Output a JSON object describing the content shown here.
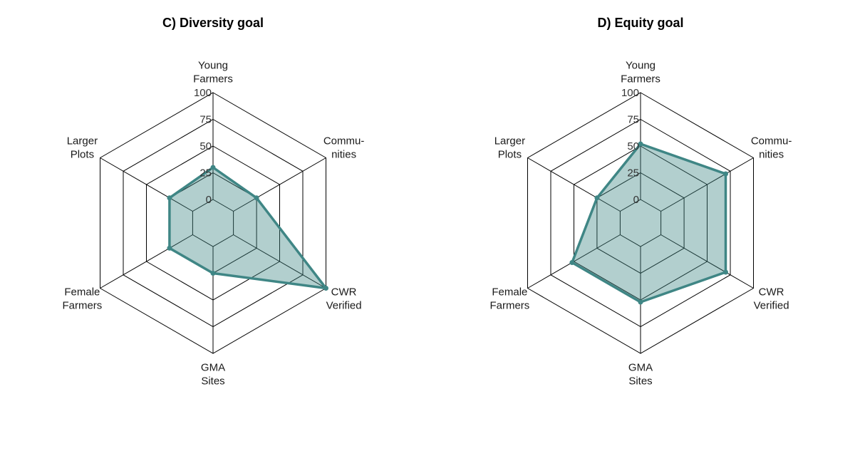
{
  "chart_data": [
    {
      "type": "radar",
      "title": "C) Diversity goal",
      "axes": [
        "Young\nFarmers",
        "Commu-\nnities",
        "CWR\nVerified",
        "GMA\nSites",
        "Female\nFarmers",
        "Larger\nPlots"
      ],
      "ticks": [
        0,
        25,
        50,
        75,
        100
      ],
      "range": [
        0,
        100
      ],
      "values": [
        30,
        25,
        100,
        25,
        25,
        25
      ],
      "colors": {
        "line": "#3f8685",
        "fill": "#3f8685"
      }
    },
    {
      "type": "radar",
      "title": "D) Equity goal",
      "axes": [
        "Young\nFarmers",
        "Commu-\nnities",
        "CWR\nVerified",
        "GMA\nSites",
        "Female\nFarmers",
        "Larger\nPlots"
      ],
      "ticks": [
        0,
        25,
        50,
        75,
        100
      ],
      "range": [
        0,
        100
      ],
      "values": [
        52,
        70,
        70,
        52,
        52,
        25
      ],
      "colors": {
        "line": "#3f8685",
        "fill": "#3f8685"
      }
    }
  ]
}
